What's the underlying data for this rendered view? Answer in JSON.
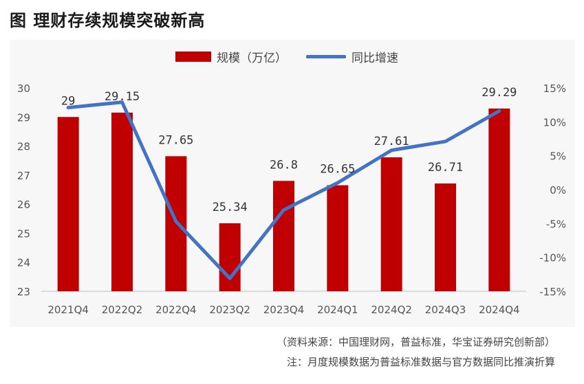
{
  "page": {
    "title": "图  理财存续规模突破新高",
    "source": "（资料来源：中国理财网，普益标准，华宝证券研究创新部）",
    "note": "注：月度规模数据为普益标准数据与官方数据同比推演折算"
  },
  "colors": {
    "bar": "#c00000",
    "line": "#4472c4"
  },
  "chart_data": {
    "type": "bar",
    "categories": [
      "2021Q4",
      "2022Q2",
      "2022Q4",
      "2023Q2",
      "2023Q4",
      "2024Q1",
      "2024Q2",
      "2024Q3",
      "2024Q4"
    ],
    "series": [
      {
        "name": "规模（万亿）",
        "type": "bar",
        "axis": "left",
        "values": [
          29,
          29.15,
          27.65,
          25.34,
          26.8,
          26.65,
          27.61,
          26.71,
          29.29
        ],
        "labels": [
          "29",
          "29.15",
          "27.65",
          "25.34",
          "26.8",
          "26.65",
          "27.61",
          "26.71",
          "29.29"
        ]
      },
      {
        "name": "同比增速",
        "type": "line",
        "axis": "right",
        "values": [
          12.1,
          12.9,
          -4.7,
          -13.1,
          -3.0,
          1.0,
          5.8,
          7.1,
          11.6
        ]
      }
    ],
    "y_left": {
      "range": [
        23,
        30
      ],
      "ticks": [
        "23",
        "24",
        "25",
        "26",
        "27",
        "28",
        "29",
        "30"
      ]
    },
    "y_right": {
      "range": [
        -15,
        15
      ],
      "ticks": [
        "-15%",
        "-10%",
        "-5%",
        "0%",
        "5%",
        "10%",
        "15%"
      ]
    },
    "legend_position": "top-center",
    "grid": false
  }
}
